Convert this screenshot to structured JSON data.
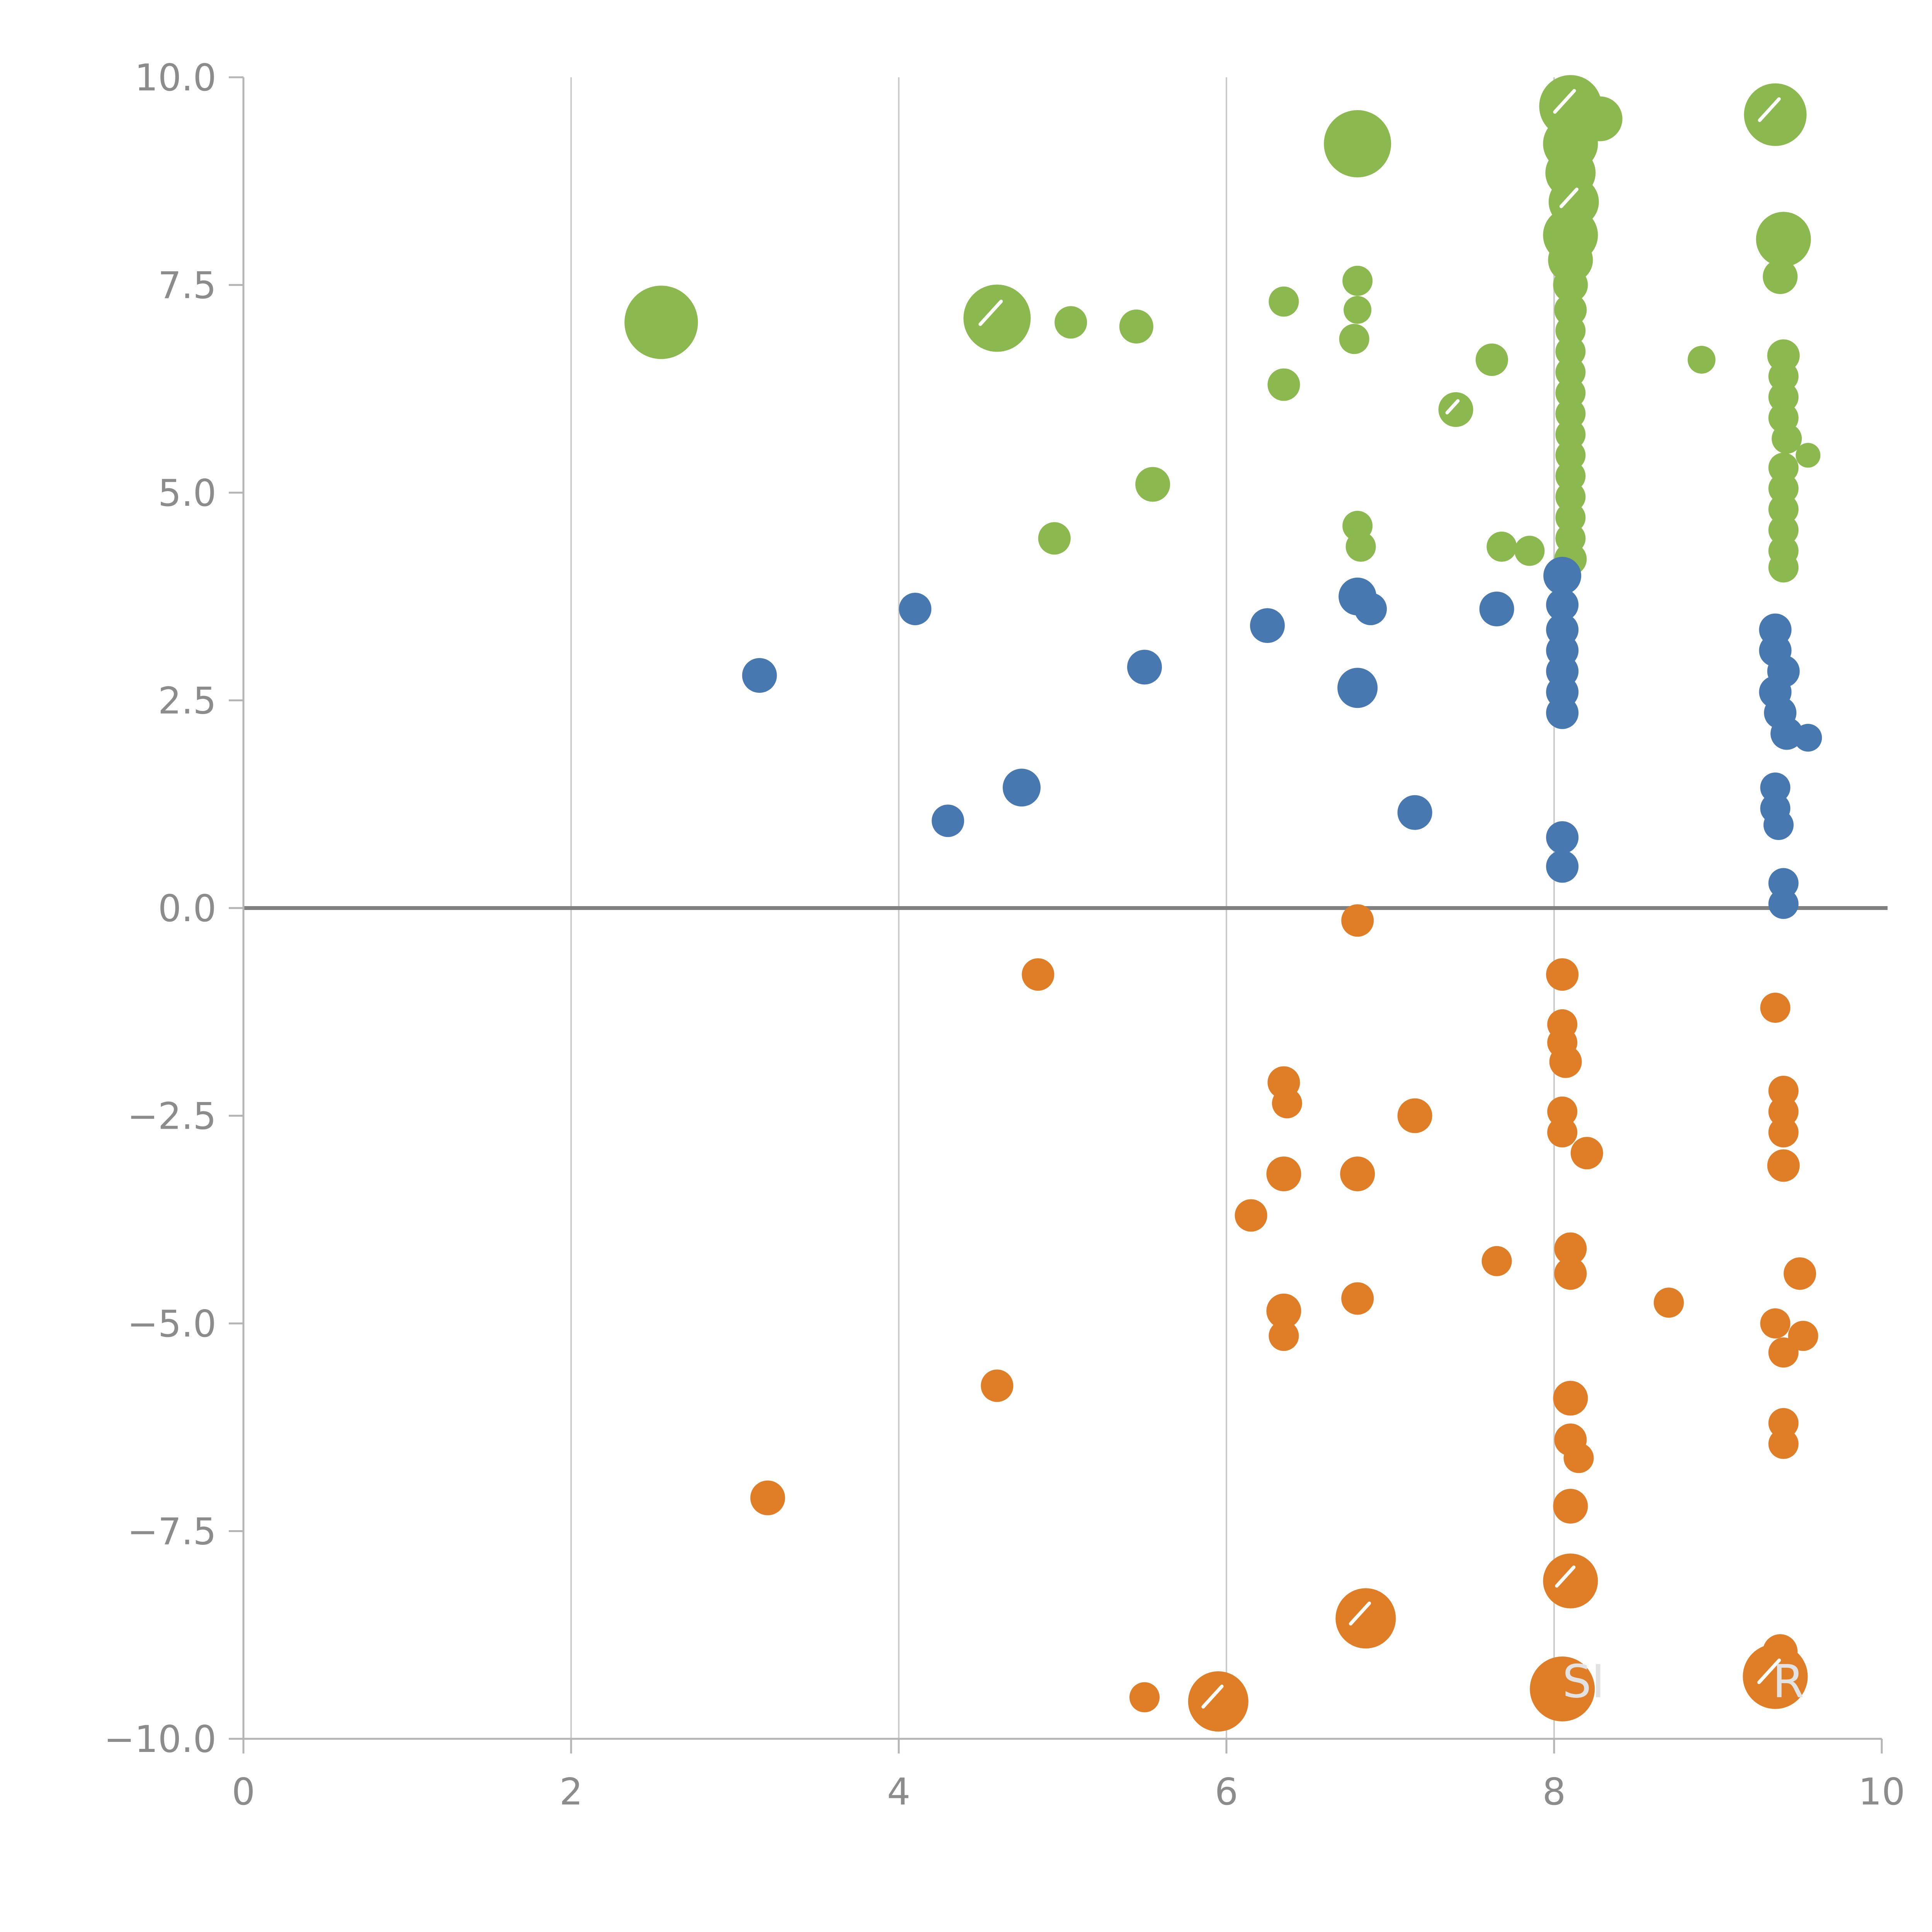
{
  "figure": {
    "title": "",
    "background": "#ffffff"
  },
  "chart_data": {
    "type": "scatter",
    "title": "",
    "xlabel": "",
    "ylabel": "",
    "xlim": [
      0,
      10
    ],
    "ylim": [
      -10,
      10
    ],
    "grid": {
      "vertical_x": [
        2,
        4,
        6,
        8
      ],
      "horizontal_y": [],
      "zero_line_y": 0
    },
    "legend": "none",
    "colors": {
      "grid": "#cccccc",
      "zero_line": "#808080",
      "axis": "#b5b5b5",
      "tick_label": "#8c8c8c",
      "annotation": "#e2e2e2",
      "slash": "#ffffff"
    },
    "xticks": [
      {
        "v": 0,
        "label": "0"
      },
      {
        "v": 2,
        "label": "2"
      },
      {
        "v": 4,
        "label": "4"
      },
      {
        "v": 6,
        "label": "6"
      },
      {
        "v": 8,
        "label": "8"
      },
      {
        "v": 10,
        "label": "10"
      }
    ],
    "yticks": [
      {
        "v": -10,
        "label": "−10.0"
      },
      {
        "v": -7.5,
        "label": "−7.5"
      },
      {
        "v": -5,
        "label": "−5.0"
      },
      {
        "v": -2.5,
        "label": "−2.5"
      },
      {
        "v": 0,
        "label": "0.0"
      },
      {
        "v": 2.5,
        "label": "2.5"
      },
      {
        "v": 5,
        "label": "5.0"
      },
      {
        "v": 7.5,
        "label": "7.5"
      },
      {
        "v": 10,
        "label": "10.0"
      }
    ],
    "series": [
      {
        "name": "green",
        "color": "#8BB84F",
        "points": [
          [
            2.55,
            7.05,
            95
          ],
          [
            4.6,
            7.1,
            87,
            1
          ],
          [
            5.05,
            7.05,
            42
          ],
          [
            5.45,
            7.0,
            44
          ],
          [
            6.35,
            7.3,
            39
          ],
          [
            6.35,
            6.3,
            42
          ],
          [
            6.8,
            9.2,
            87
          ],
          [
            6.8,
            7.55,
            39
          ],
          [
            6.8,
            7.2,
            36
          ],
          [
            6.78,
            6.85,
            39
          ],
          [
            5.55,
            5.1,
            45
          ],
          [
            4.95,
            4.45,
            42
          ],
          [
            6.8,
            4.6,
            39
          ],
          [
            6.82,
            4.35,
            39
          ],
          [
            7.4,
            6.0,
            45,
            1
          ],
          [
            7.62,
            6.6,
            42
          ],
          [
            7.68,
            4.35,
            39
          ],
          [
            7.85,
            4.3,
            39
          ],
          [
            8.9,
            6.6,
            36
          ],
          [
            8.1,
            9.65,
            81,
            1
          ],
          [
            8.28,
            9.5,
            58
          ],
          [
            8.1,
            9.2,
            71
          ],
          [
            8.1,
            8.85,
            65
          ],
          [
            8.12,
            8.5,
            65,
            1
          ],
          [
            8.1,
            8.1,
            71
          ],
          [
            8.1,
            7.8,
            58
          ],
          [
            8.1,
            7.5,
            45
          ],
          [
            8.1,
            7.2,
            42
          ],
          [
            8.1,
            6.95,
            39
          ],
          [
            8.1,
            6.7,
            39
          ],
          [
            8.1,
            6.45,
            39
          ],
          [
            8.1,
            6.2,
            39
          ],
          [
            8.1,
            5.95,
            39
          ],
          [
            8.1,
            5.7,
            39
          ],
          [
            8.1,
            5.45,
            39
          ],
          [
            8.1,
            5.2,
            39
          ],
          [
            8.1,
            4.95,
            39
          ],
          [
            8.1,
            4.7,
            39
          ],
          [
            8.1,
            4.45,
            39
          ],
          [
            8.1,
            4.2,
            42
          ],
          [
            9.35,
            9.55,
            81,
            1
          ],
          [
            9.4,
            8.05,
            71
          ],
          [
            9.38,
            7.6,
            45
          ],
          [
            9.4,
            6.65,
            42
          ],
          [
            9.4,
            6.4,
            39
          ],
          [
            9.4,
            6.15,
            39
          ],
          [
            9.4,
            5.9,
            39
          ],
          [
            9.42,
            5.65,
            39
          ],
          [
            9.55,
            5.45,
            32
          ],
          [
            9.4,
            5.3,
            39
          ],
          [
            9.4,
            5.05,
            39
          ],
          [
            9.4,
            4.8,
            39
          ],
          [
            9.4,
            4.55,
            39
          ],
          [
            9.4,
            4.3,
            39
          ],
          [
            9.4,
            4.1,
            39
          ]
        ]
      },
      {
        "name": "blue",
        "color": "#4878B0",
        "points": [
          [
            3.15,
            2.8,
            45
          ],
          [
            4.1,
            3.6,
            42
          ],
          [
            4.3,
            1.05,
            42
          ],
          [
            4.75,
            1.45,
            49
          ],
          [
            5.5,
            2.9,
            45
          ],
          [
            6.25,
            3.4,
            45
          ],
          [
            6.8,
            3.75,
            49
          ],
          [
            6.88,
            3.6,
            42
          ],
          [
            6.8,
            2.65,
            52
          ],
          [
            7.15,
            1.15,
            45
          ],
          [
            7.65,
            3.6,
            45
          ],
          [
            8.05,
            4.0,
            49
          ],
          [
            8.05,
            3.65,
            42
          ],
          [
            8.05,
            3.35,
            42
          ],
          [
            8.05,
            3.1,
            42
          ],
          [
            8.05,
            2.85,
            42
          ],
          [
            8.05,
            2.6,
            42
          ],
          [
            8.05,
            2.35,
            42
          ],
          [
            8.05,
            0.85,
            42
          ],
          [
            8.05,
            0.5,
            42
          ],
          [
            9.35,
            3.35,
            42
          ],
          [
            9.35,
            3.1,
            42
          ],
          [
            9.4,
            2.85,
            42
          ],
          [
            9.35,
            2.6,
            42
          ],
          [
            9.38,
            2.35,
            42
          ],
          [
            9.42,
            2.1,
            42
          ],
          [
            9.55,
            2.05,
            36
          ],
          [
            9.35,
            1.45,
            39
          ],
          [
            9.35,
            1.2,
            39
          ],
          [
            9.37,
            1.0,
            39
          ],
          [
            9.4,
            0.3,
            39
          ],
          [
            9.4,
            0.05,
            39
          ]
        ]
      },
      {
        "name": "orange",
        "color": "#E07E28",
        "points": [
          [
            6.8,
            -0.15,
            42
          ],
          [
            4.85,
            -0.8,
            42
          ],
          [
            8.05,
            -0.8,
            42
          ],
          [
            8.05,
            -1.4,
            39
          ],
          [
            8.05,
            -1.62,
            39
          ],
          [
            8.07,
            -1.85,
            42
          ],
          [
            6.35,
            -2.1,
            42
          ],
          [
            6.37,
            -2.35,
            39
          ],
          [
            7.15,
            -2.5,
            45
          ],
          [
            8.05,
            -2.45,
            39
          ],
          [
            8.05,
            -2.7,
            39
          ],
          [
            8.2,
            -2.95,
            42
          ],
          [
            9.35,
            -1.2,
            39
          ],
          [
            9.4,
            -2.2,
            39
          ],
          [
            9.4,
            -2.45,
            39
          ],
          [
            9.4,
            -2.7,
            39
          ],
          [
            9.4,
            -3.1,
            42
          ],
          [
            6.35,
            -3.2,
            45
          ],
          [
            6.8,
            -3.2,
            45
          ],
          [
            6.15,
            -3.7,
            42
          ],
          [
            7.65,
            -4.25,
            39
          ],
          [
            8.1,
            -4.1,
            42
          ],
          [
            8.1,
            -4.4,
            42
          ],
          [
            6.8,
            -4.7,
            42
          ],
          [
            6.35,
            -4.85,
            45
          ],
          [
            6.35,
            -5.15,
            39
          ],
          [
            8.7,
            -4.75,
            39
          ],
          [
            9.5,
            -4.4,
            42
          ],
          [
            9.35,
            -5.0,
            39
          ],
          [
            9.52,
            -5.15,
            39
          ],
          [
            9.4,
            -5.35,
            39
          ],
          [
            4.6,
            -5.75,
            42
          ],
          [
            8.1,
            -5.9,
            45
          ],
          [
            8.1,
            -6.4,
            42
          ],
          [
            8.15,
            -6.62,
            39
          ],
          [
            9.4,
            -6.2,
            39
          ],
          [
            9.4,
            -6.45,
            39
          ],
          [
            3.2,
            -7.1,
            45
          ],
          [
            8.1,
            -7.2,
            45
          ],
          [
            8.1,
            -8.1,
            71,
            1
          ],
          [
            6.85,
            -8.55,
            78,
            1
          ],
          [
            5.5,
            -9.5,
            39
          ],
          [
            5.95,
            -9.55,
            78,
            1
          ],
          [
            8.05,
            -9.4,
            84
          ],
          [
            9.38,
            -8.95,
            45
          ],
          [
            9.35,
            -9.25,
            84,
            1
          ]
        ]
      }
    ],
    "annotations": [
      {
        "text": "SI",
        "x": 8.18,
        "y": -9.5
      },
      {
        "text": "R",
        "x": 9.43,
        "y": -9.5
      }
    ]
  }
}
